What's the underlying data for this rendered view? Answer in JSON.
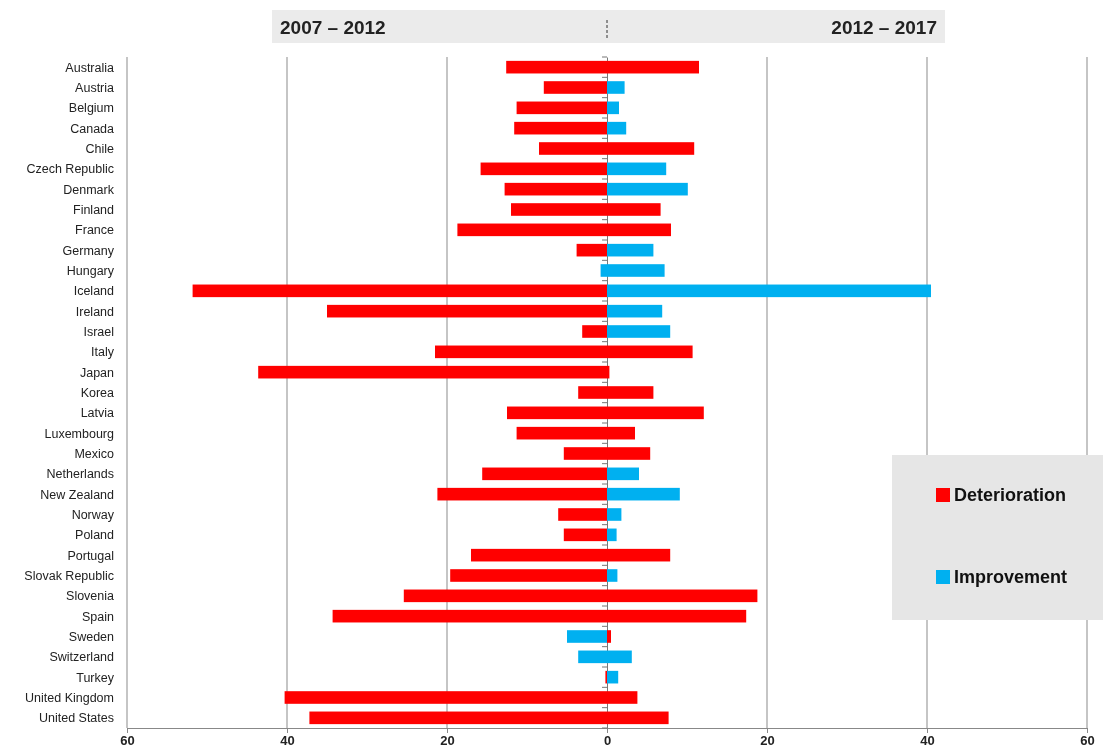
{
  "chart_data": {
    "type": "bar",
    "orientation": "horizontal",
    "stacked": true,
    "categories": [
      "Australia",
      "Austria",
      "Belgium",
      "Canada",
      "Chile",
      "Czech Republic",
      "Denmark",
      "Finland",
      "France",
      "Germany",
      "Hungary",
      "Iceland",
      "Ireland",
      "Israel",
      "Italy",
      "Japan",
      "Korea",
      "Latvia",
      "Luxembourg",
      "Mexico",
      "Netherlands",
      "New Zealand",
      "Norway",
      "Poland",
      "Portugal",
      "Slovak Republic",
      "Slovenia",
      "Spain",
      "Sweden",
      "Switzerland",
      "Turkey",
      "United Kingdom",
      "United States"
    ],
    "series": [
      {
        "name": "Deterioration",
        "color": "#ff0000",
        "values": [
          -12.6,
          -7.9,
          -11.3,
          -11.6,
          -8.5,
          -15.8,
          -12.8,
          -12.0,
          -18.7,
          -3.8,
          null,
          -51.8,
          -35.0,
          -3.1,
          -21.5,
          -43.6,
          -3.6,
          -12.5,
          -11.3,
          -5.4,
          -15.6,
          -21.2,
          -6.1,
          -5.4,
          -17.0,
          -19.6,
          -25.4,
          -34.3,
          null,
          null,
          -0.2,
          -40.3,
          -37.2
        ]
      },
      {
        "name": "Improvement",
        "color": "#00b0f0",
        "values": [
          null,
          null,
          null,
          null,
          null,
          null,
          null,
          null,
          null,
          null,
          -0.8,
          null,
          null,
          null,
          null,
          null,
          null,
          null,
          null,
          null,
          null,
          null,
          null,
          null,
          null,
          null,
          null,
          null,
          -5.0,
          -3.6,
          null,
          null,
          null
        ]
      },
      {
        "color": "#ff0000",
        "values": [
          11.5,
          null,
          null,
          null,
          10.9,
          null,
          null,
          6.7,
          8.0,
          null,
          null,
          null,
          null,
          null,
          10.7,
          0.3,
          5.8,
          12.1,
          3.5,
          5.4,
          null,
          null,
          null,
          null,
          7.9,
          null,
          18.8,
          17.4,
          0.5,
          null,
          null,
          3.8,
          7.7
        ]
      },
      {
        "color": "#00b0f0",
        "values": [
          null,
          2.2,
          1.5,
          2.4,
          null,
          7.4,
          10.1,
          null,
          null,
          5.8,
          7.2,
          40.5,
          6.9,
          7.9,
          null,
          null,
          null,
          null,
          null,
          null,
          4.0,
          9.1,
          1.8,
          1.2,
          null,
          1.3,
          null,
          null,
          null,
          3.1,
          1.4,
          null,
          null
        ]
      }
    ],
    "xlim": [
      -60,
      60
    ],
    "xticks": [
      {
        "value": -60,
        "label": "60"
      },
      {
        "value": -40,
        "label": "40"
      },
      {
        "value": -20,
        "label": "20"
      },
      0,
      20,
      40,
      60
    ],
    "grid": "x",
    "legend": "right",
    "annotations": [
      "2007 – 2012",
      "2012 – 2017"
    ]
  }
}
